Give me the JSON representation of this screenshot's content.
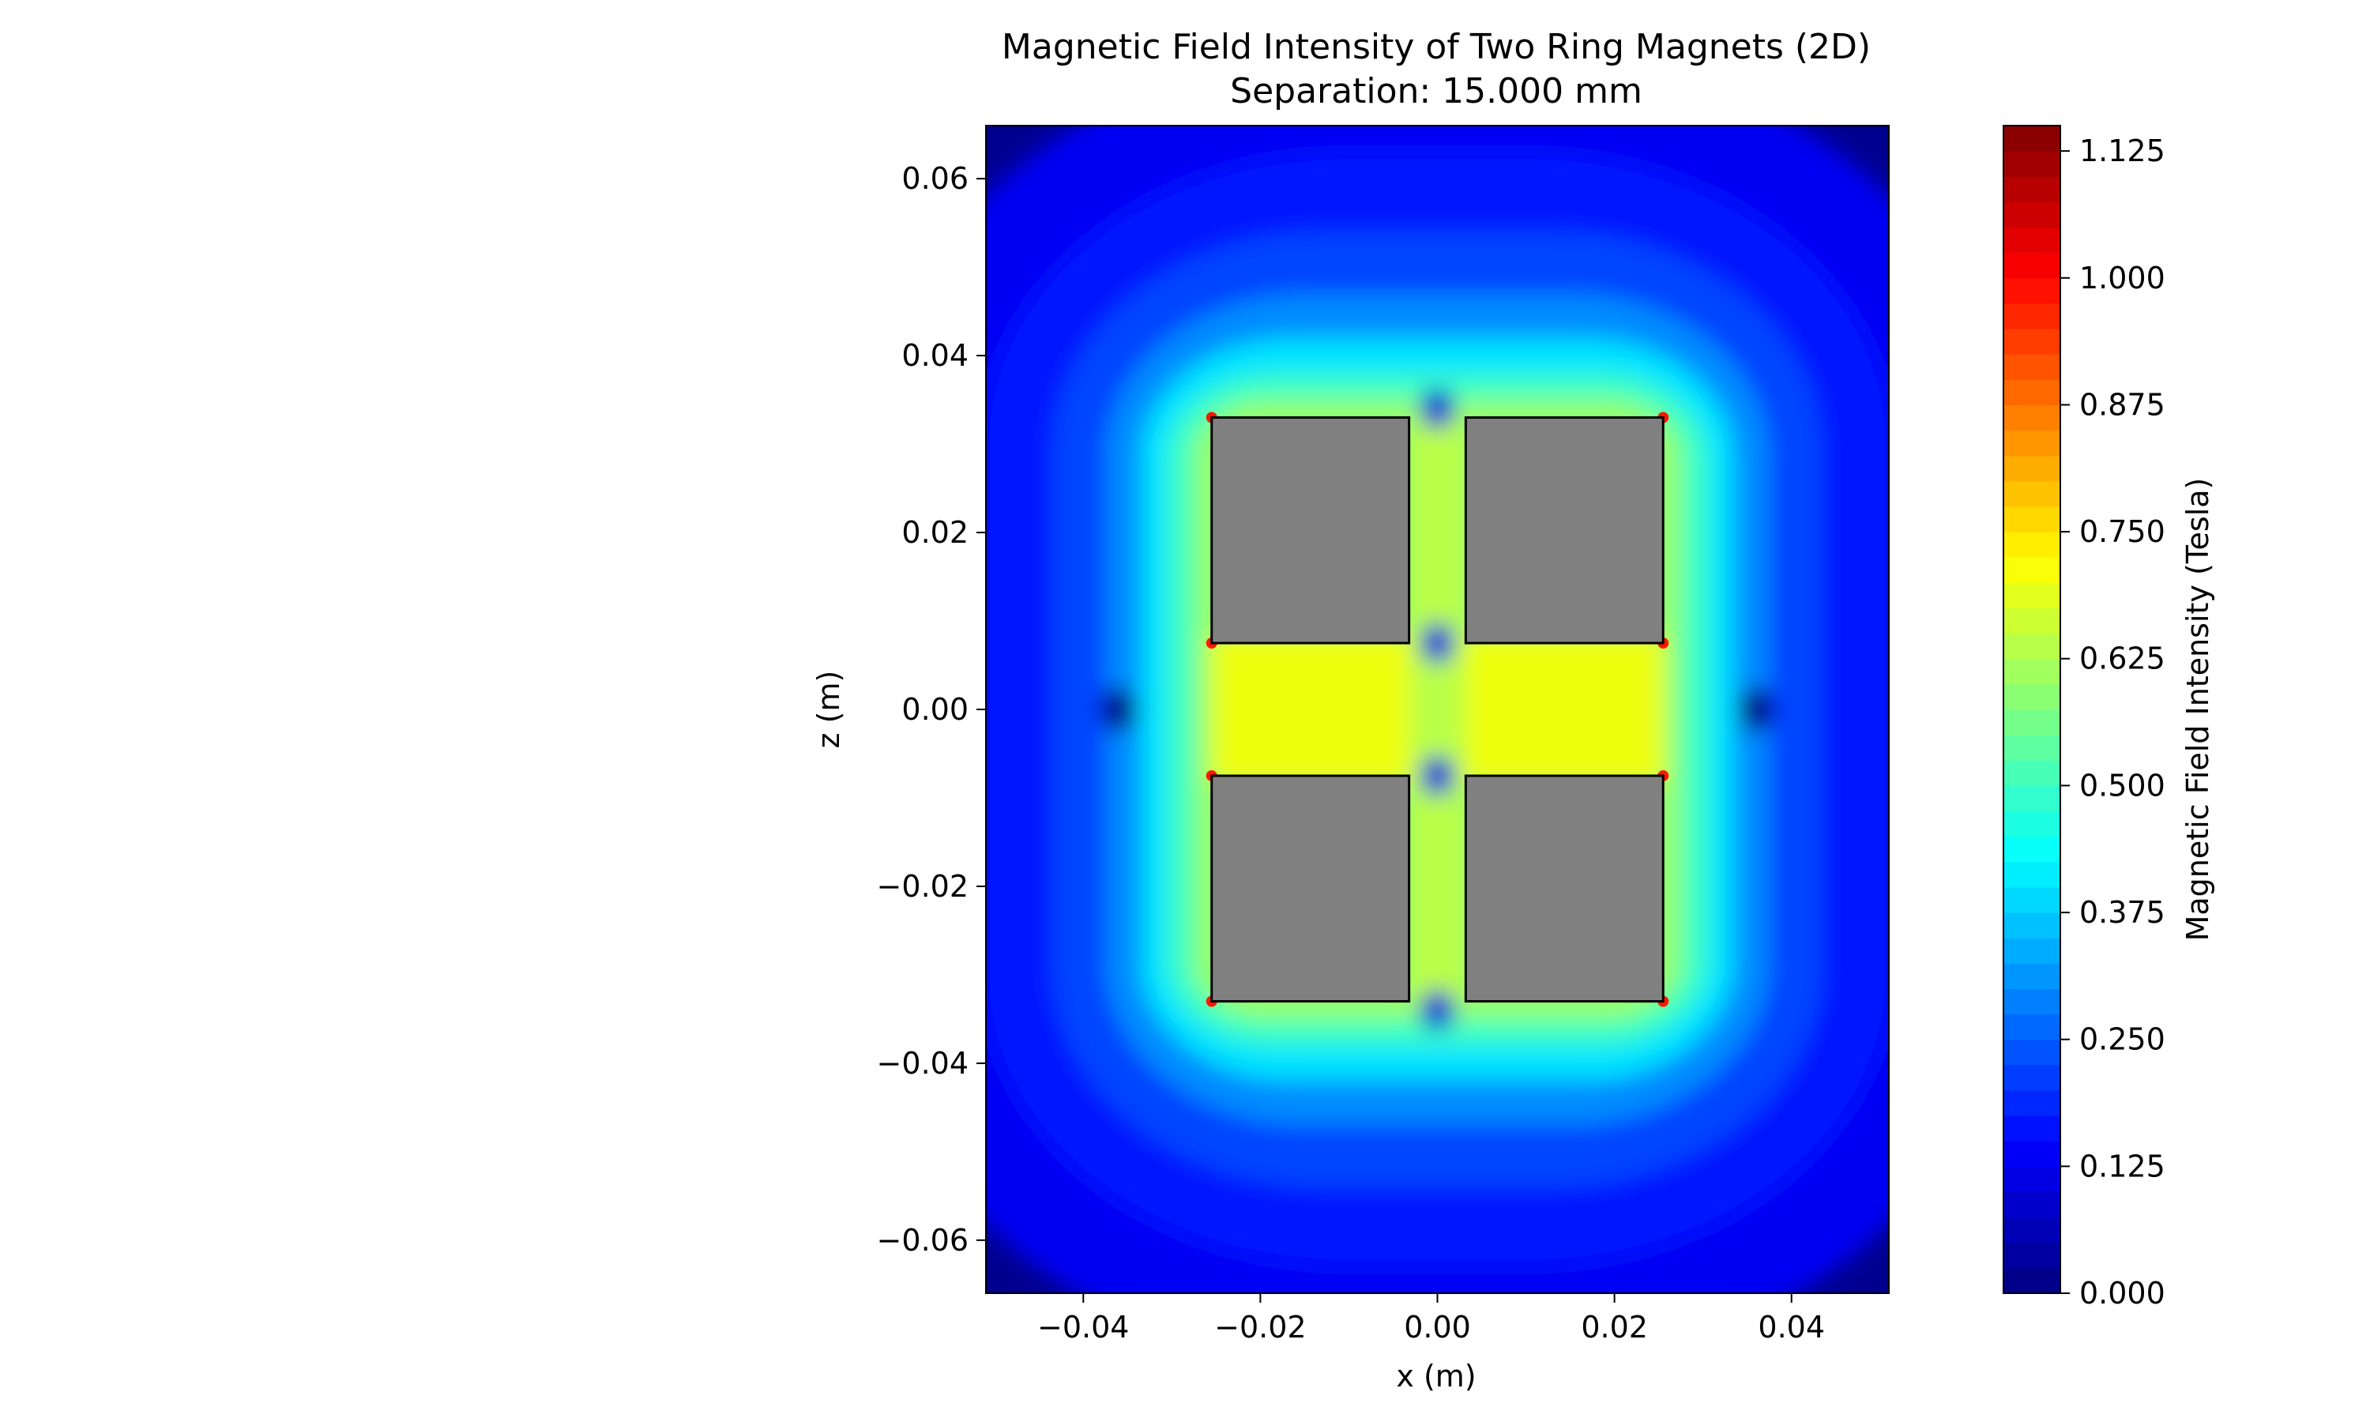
{
  "chart_data": {
    "type": "heatmap",
    "title": "Magnetic Field Intensity of Two Ring Magnets (2D)",
    "subtitle": "Separation: 15.000 mm",
    "xlabel": "x (m)",
    "ylabel": "z (m)",
    "xlim": [
      -0.051,
      0.051
    ],
    "ylim": [
      -0.066,
      0.066
    ],
    "x_ticks": [
      -0.04,
      -0.02,
      0.0,
      0.02,
      0.04
    ],
    "x_tick_labels": [
      "−0.04",
      "−0.02",
      "0.00",
      "0.02",
      "0.04"
    ],
    "y_ticks": [
      0.06,
      0.04,
      0.02,
      0.0,
      -0.02,
      -0.04,
      -0.06
    ],
    "y_tick_labels": [
      "0.06",
      "0.04",
      "0.02",
      "0.00",
      "−0.02",
      "−0.04",
      "−0.06"
    ],
    "magnets": [
      {
        "x0": -0.0255,
        "x1": -0.0032,
        "z0": 0.0075,
        "z1": 0.033
      },
      {
        "x0": 0.0032,
        "x1": 0.0255,
        "z0": 0.0075,
        "z1": 0.033
      },
      {
        "x0": -0.0255,
        "x1": -0.0032,
        "z0": -0.033,
        "z1": -0.0075
      },
      {
        "x0": 0.0032,
        "x1": 0.0255,
        "z0": -0.033,
        "z1": -0.0075
      }
    ],
    "colorbar": {
      "label": "Magnetic Field Intensity (Tesla)",
      "colormap": "jet",
      "vmin": 0.0,
      "vmax": 1.15,
      "ticks": [
        0.0,
        0.125,
        0.25,
        0.375,
        0.5,
        0.625,
        0.75,
        0.875,
        1.0,
        1.125
      ],
      "tick_labels": [
        "0.000",
        "0.125",
        "0.250",
        "0.375",
        "0.500",
        "0.625",
        "0.750",
        "0.875",
        "1.000",
        "1.125"
      ],
      "levels": 46
    },
    "magnet_fill": "#808080",
    "magnet_edge": "#000000"
  }
}
